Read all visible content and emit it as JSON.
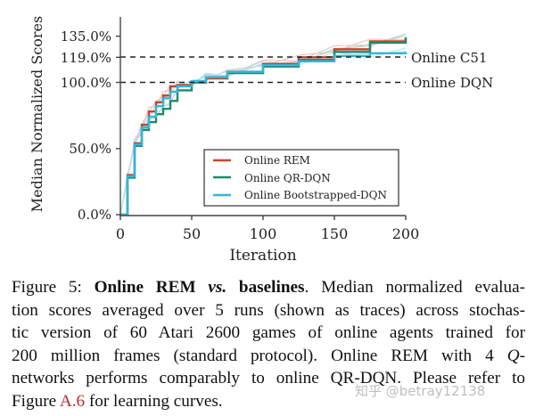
{
  "chart_data": {
    "type": "line",
    "title": "",
    "xlabel": "Iteration",
    "ylabel": "Median Normalized Scores",
    "xlim": [
      0,
      200
    ],
    "ylim": [
      0,
      150
    ],
    "x_ticks": [
      "0",
      "50",
      "100",
      "150",
      "200"
    ],
    "y_ticks": [
      "0.0%",
      "50.0%",
      "100.0%",
      "119.0%",
      "135.0%"
    ],
    "grid": false,
    "legend_position": "lower right",
    "reference_lines": [
      {
        "label": "Online C51",
        "y": 119.0,
        "style": "dashed",
        "color": "#222222"
      },
      {
        "label": "Online DQN",
        "y": 100.0,
        "style": "dashed",
        "color": "#222222"
      }
    ],
    "series": [
      {
        "name": "Online REM",
        "color": "#c8442a",
        "x": [
          0,
          5,
          10,
          15,
          20,
          25,
          30,
          35,
          40,
          50,
          60,
          75,
          100,
          125,
          150,
          175,
          200
        ],
        "values": [
          0,
          30,
          54,
          68,
          78,
          85,
          90,
          97,
          98,
          100,
          103,
          108,
          114,
          119,
          125,
          131,
          134
        ]
      },
      {
        "name": "Online QR-DQN",
        "color": "#1e8a6e",
        "x": [
          0,
          5,
          10,
          15,
          20,
          25,
          30,
          35,
          40,
          50,
          60,
          75,
          100,
          125,
          150,
          175,
          200
        ],
        "values": [
          0,
          28,
          52,
          64,
          70,
          76,
          80,
          86,
          94,
          100,
          104,
          107,
          112,
          117,
          123,
          130,
          134
        ]
      },
      {
        "name": "Online Bootstrapped-DQN",
        "color": "#35b6d8",
        "x": [
          0,
          5,
          10,
          15,
          20,
          25,
          30,
          35,
          40,
          50,
          60,
          75,
          100,
          125,
          150,
          175,
          200
        ],
        "values": [
          0,
          29,
          53,
          66,
          74,
          82,
          88,
          93,
          97,
          101,
          104,
          108,
          113,
          116,
          120,
          122,
          123
        ]
      }
    ]
  },
  "figure": {
    "y_axis_label": "Median Normalized Scores",
    "x_axis_label": "Iteration",
    "y_tick_labels": [
      "0.0%",
      "50.0%",
      "100.0%",
      "119.0%",
      "135.0%"
    ],
    "x_tick_labels": [
      "0",
      "50",
      "100",
      "150",
      "200"
    ],
    "ref_labels": {
      "c51": "Online C51",
      "dqn": "Online DQN"
    },
    "legend": [
      "Online REM",
      "Online QR-DQN",
      "Online Bootstrapped-DQN"
    ]
  },
  "caption": {
    "label": "Figure 5:",
    "title_a": "Online REM",
    "title_vs": "vs.",
    "title_b": "baselines",
    "line1_rest": ". Median normalized evalua-",
    "line2": "tion scores averaged over 5 runs (shown as traces) across stochas-",
    "line3": "tic version of 60 Atari 2600 games of online agents trained for",
    "line4_a": "200 million frames (standard protocol).  Online REM with 4 ",
    "line4_q": "Q",
    "line4_b": "-",
    "line5": "networks performs comparably to online QR-DQN. Please refer to",
    "line6_a": "Figure ",
    "line6_ref": "A.6",
    "line6_b": " for learning curves."
  },
  "watermark": "知乎 @betray12138"
}
